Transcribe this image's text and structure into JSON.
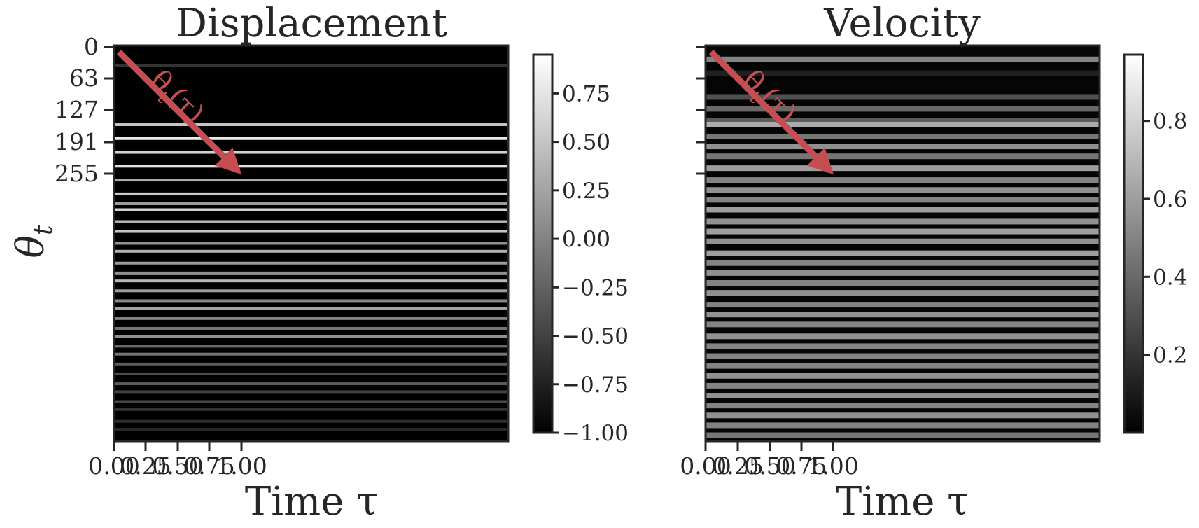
{
  "chart_data": [
    {
      "type": "heatmap",
      "title": "Displacement",
      "xlabel": "Time τ",
      "ylabel": "θ",
      "ylabel_subscript": "t",
      "x_tick_labels": [
        "0.00",
        "0.25",
        "0.50",
        "0.75",
        "1.00"
      ],
      "y_tick_labels": [
        "0",
        "63",
        "127",
        "191",
        "255"
      ],
      "colorbar_ticks": [
        0.75,
        0.5,
        0.25,
        0.0,
        -0.25,
        -0.5,
        -0.75,
        -1.0
      ],
      "colorbar_range": [
        -1.0,
        0.95
      ],
      "colormap": "gray",
      "annotation": {
        "text": "θ",
        "subscript": "t",
        "suffix": "(τ)",
        "color": "#c44e52"
      },
      "background_value": -1.0,
      "bright_rows": [
        {
          "row": 0.05,
          "value": -0.6
        },
        {
          "row": 0.2,
          "value": 0.5
        },
        {
          "row": 0.235,
          "value": 0.8
        },
        {
          "row": 0.27,
          "value": 0.6
        },
        {
          "row": 0.305,
          "value": 0.7
        },
        {
          "row": 0.34,
          "value": 0.3
        },
        {
          "row": 0.375,
          "value": 0.55
        },
        {
          "row": 0.4,
          "value": 0.2
        },
        {
          "row": 0.415,
          "value": 0.6
        },
        {
          "row": 0.445,
          "value": 0.35
        },
        {
          "row": 0.47,
          "value": 0.5
        },
        {
          "row": 0.5,
          "value": 0.1
        },
        {
          "row": 0.52,
          "value": 0.35
        },
        {
          "row": 0.55,
          "value": 0.2
        },
        {
          "row": 0.575,
          "value": 0.1
        },
        {
          "row": 0.595,
          "value": 0.4
        },
        {
          "row": 0.62,
          "value": 0.2
        },
        {
          "row": 0.645,
          "value": 0.05
        },
        {
          "row": 0.665,
          "value": 0.25
        },
        {
          "row": 0.69,
          "value": 0.0
        },
        {
          "row": 0.715,
          "value": -0.1
        },
        {
          "row": 0.735,
          "value": 0.1
        },
        {
          "row": 0.76,
          "value": -0.2
        },
        {
          "row": 0.78,
          "value": -0.1
        },
        {
          "row": 0.805,
          "value": -0.3
        },
        {
          "row": 0.83,
          "value": -0.4
        },
        {
          "row": 0.855,
          "value": -0.3
        },
        {
          "row": 0.875,
          "value": -0.5
        },
        {
          "row": 0.9,
          "value": -0.45
        },
        {
          "row": 0.92,
          "value": -0.6
        },
        {
          "row": 0.95,
          "value": -0.65
        },
        {
          "row": 0.97,
          "value": -0.7
        }
      ]
    },
    {
      "type": "heatmap",
      "title": "Velocity",
      "xlabel": "Time τ",
      "x_tick_labels": [
        "0.00",
        "0.25",
        "0.50",
        "0.75",
        "1.00"
      ],
      "y_tick_labels": [
        "",
        "",
        "",
        "",
        ""
      ],
      "colorbar_ticks": [
        0.8,
        0.6,
        0.4,
        0.2
      ],
      "colorbar_range": [
        0.0,
        0.97
      ],
      "colormap": "gray",
      "annotation": {
        "text": "θ",
        "subscript": "t",
        "suffix": "(τ)",
        "color": "#c44e52"
      },
      "background_value": 0.02,
      "bright_rows": [
        {
          "row": 0.035,
          "value": 0.5
        },
        {
          "row": 0.07,
          "value": 0.12
        },
        {
          "row": 0.13,
          "value": 0.3
        },
        {
          "row": 0.16,
          "value": 0.4
        },
        {
          "row": 0.19,
          "value": 0.35
        },
        {
          "row": 0.2,
          "value": 0.65
        },
        {
          "row": 0.23,
          "value": 0.45
        },
        {
          "row": 0.255,
          "value": 0.55
        },
        {
          "row": 0.28,
          "value": 0.45
        },
        {
          "row": 0.31,
          "value": 0.6
        },
        {
          "row": 0.34,
          "value": 0.5
        },
        {
          "row": 0.365,
          "value": 0.55
        },
        {
          "row": 0.39,
          "value": 0.5
        },
        {
          "row": 0.415,
          "value": 0.6
        },
        {
          "row": 0.445,
          "value": 0.55
        },
        {
          "row": 0.47,
          "value": 0.6
        },
        {
          "row": 0.495,
          "value": 0.55
        },
        {
          "row": 0.525,
          "value": 0.6
        },
        {
          "row": 0.55,
          "value": 0.5
        },
        {
          "row": 0.575,
          "value": 0.55
        },
        {
          "row": 0.6,
          "value": 0.5
        },
        {
          "row": 0.625,
          "value": 0.55
        },
        {
          "row": 0.655,
          "value": 0.5
        },
        {
          "row": 0.68,
          "value": 0.55
        },
        {
          "row": 0.705,
          "value": 0.5
        },
        {
          "row": 0.735,
          "value": 0.55
        },
        {
          "row": 0.76,
          "value": 0.5
        },
        {
          "row": 0.785,
          "value": 0.5
        },
        {
          "row": 0.81,
          "value": 0.5
        },
        {
          "row": 0.835,
          "value": 0.55
        },
        {
          "row": 0.86,
          "value": 0.5
        },
        {
          "row": 0.885,
          "value": 0.55
        },
        {
          "row": 0.91,
          "value": 0.5
        },
        {
          "row": 0.935,
          "value": 0.55
        },
        {
          "row": 0.96,
          "value": 0.5
        },
        {
          "row": 0.985,
          "value": 0.45
        }
      ]
    }
  ]
}
